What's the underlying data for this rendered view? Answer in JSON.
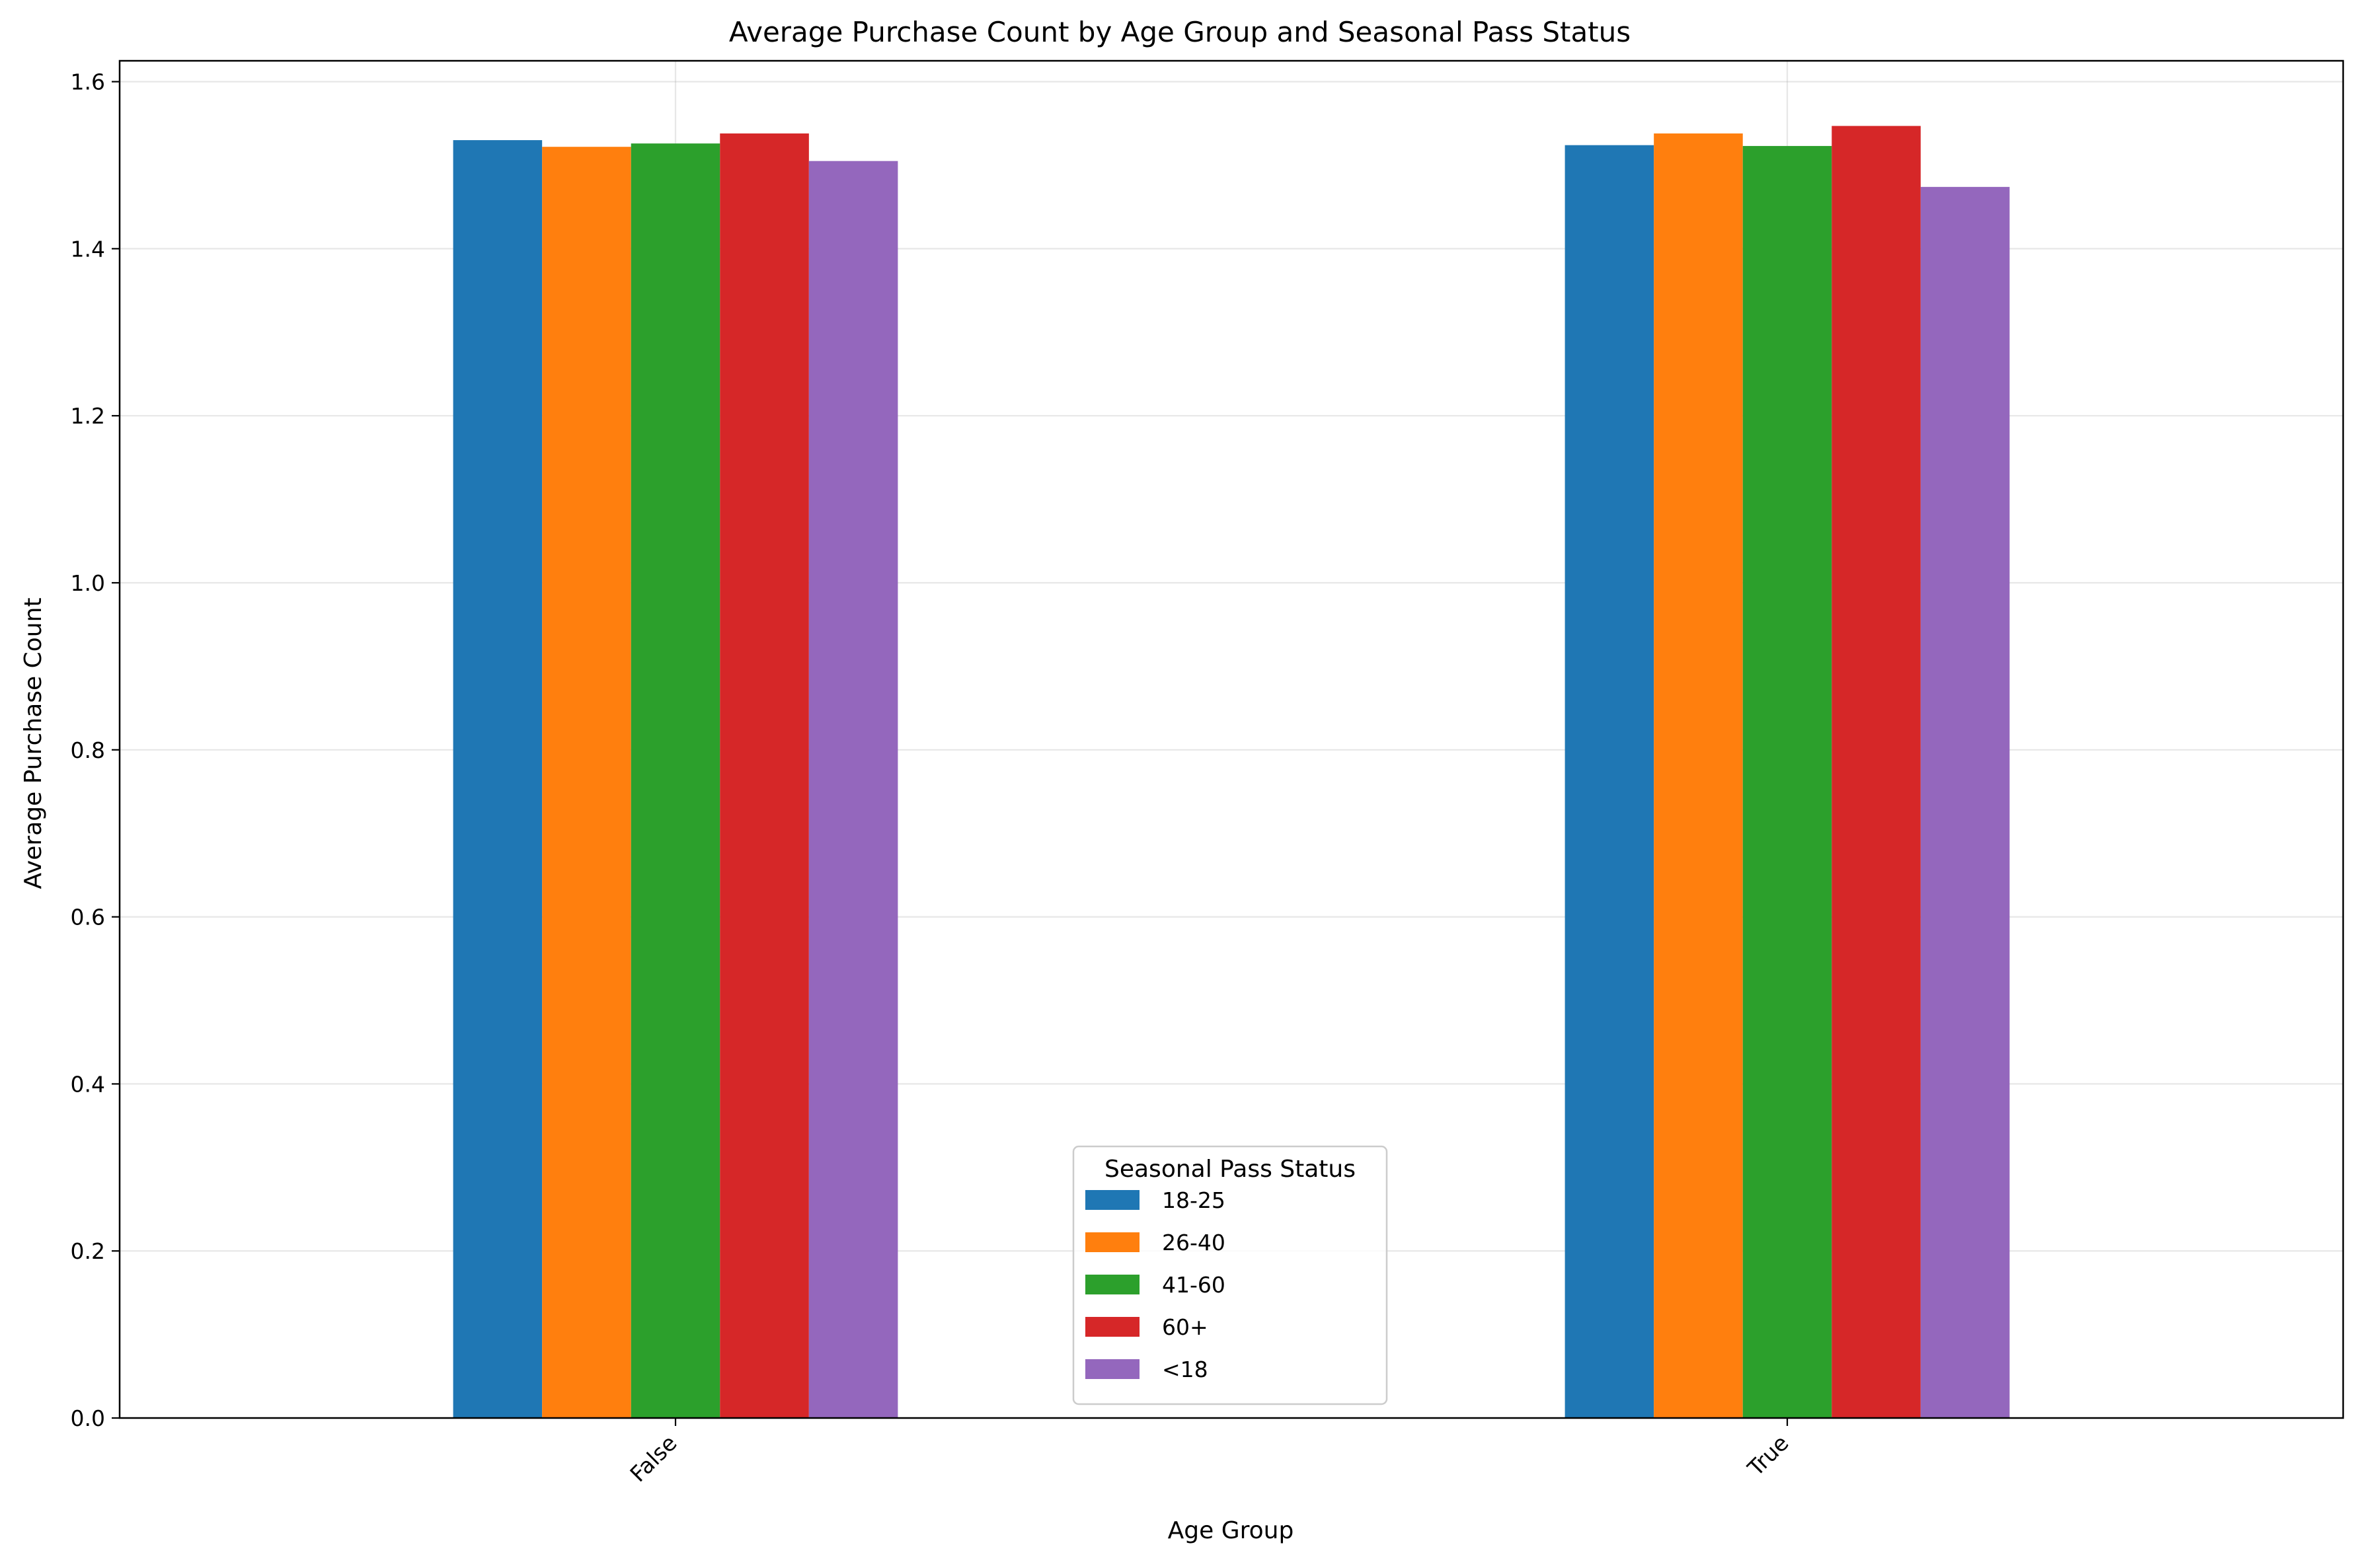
{
  "chart_data": {
    "type": "bar",
    "title": "Average Purchase Count by Age Group and Seasonal Pass Status",
    "xlabel": "Age Group",
    "ylabel": "Average Purchase Count",
    "categories": [
      "False",
      "True"
    ],
    "series": [
      {
        "name": "18-25",
        "color": "#1f77b4",
        "values": [
          1.53,
          1.524
        ]
      },
      {
        "name": "26-40",
        "color": "#ff7f0e",
        "values": [
          1.522,
          1.538
        ]
      },
      {
        "name": "41-60",
        "color": "#2ca02c",
        "values": [
          1.526,
          1.523
        ]
      },
      {
        "name": "60+",
        "color": "#d62728",
        "values": [
          1.538,
          1.547
        ]
      },
      {
        "name": "<18",
        "color": "#9467bd",
        "values": [
          1.505,
          1.474
        ]
      }
    ],
    "ylim": [
      0,
      1.625
    ],
    "yticks": [
      0.0,
      0.2,
      0.4,
      0.6,
      0.8,
      1.0,
      1.2,
      1.4,
      1.6
    ],
    "ytick_labels": [
      "0.0",
      "0.2",
      "0.4",
      "0.6",
      "0.8",
      "1.0",
      "1.2",
      "1.4",
      "1.6"
    ],
    "grid": true,
    "legend": {
      "title": "Seasonal Pass Status",
      "placement": "lower-center"
    },
    "xtick_rotation": 45
  }
}
